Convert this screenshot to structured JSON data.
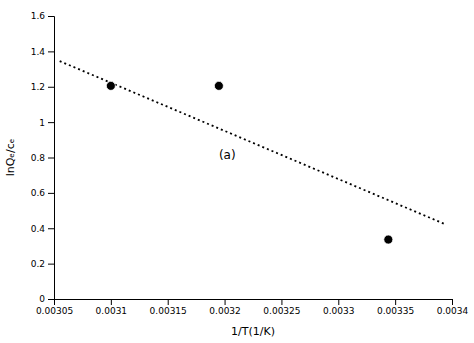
{
  "chart_data": {
    "type": "scatter",
    "xlabel": "1/T(1/K)",
    "ylabel": "lnQₑ/cₑ",
    "series": [
      {
        "type": "scatter",
        "x": [
          0.0031,
          0.003195,
          0.003344
        ],
        "values": [
          1.205,
          1.205,
          0.336
        ],
        "color": "black",
        "marker": "circle"
      },
      {
        "type": "line",
        "x": [
          0.003055,
          0.003395
        ],
        "values": [
          1.345,
          0.42
        ],
        "color": "black",
        "line_style": "dotted"
      }
    ],
    "annotations": [
      {
        "text": "(a)",
        "x": 0.003195,
        "y": 0.79
      }
    ],
    "xlim": [
      0.00305,
      0.0034
    ],
    "ylim": [
      0,
      1.6
    ],
    "xticks": [
      0.00305,
      0.0031,
      0.00315,
      0.0032,
      0.00325,
      0.0033,
      0.00335,
      0.0034
    ],
    "yticks": [
      0,
      0.2,
      0.4,
      0.6,
      0.8,
      1,
      1.2,
      1.4,
      1.6
    ],
    "grid": false
  }
}
